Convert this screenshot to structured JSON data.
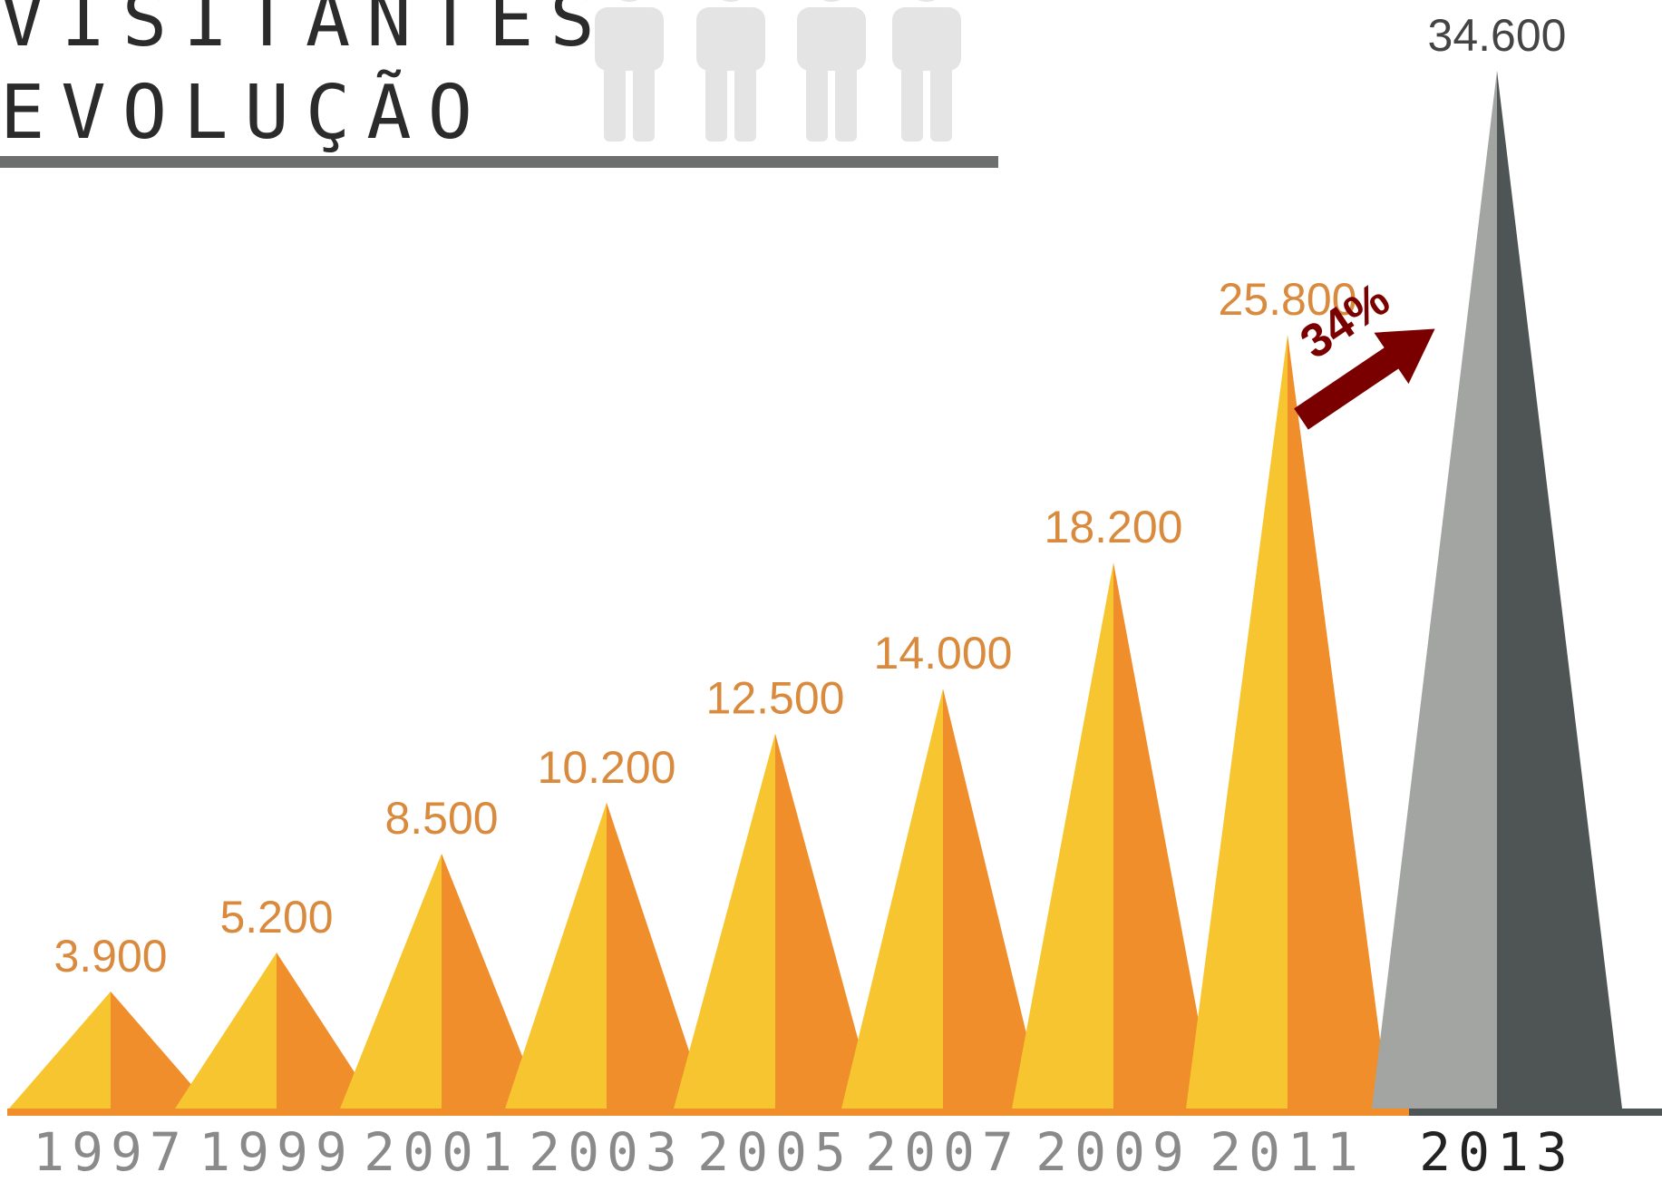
{
  "title": {
    "line1": "VISITANTES",
    "line2": "EVOLUÇÃO"
  },
  "icons": [
    "person-icon",
    "person-icon",
    "person-icon",
    "person-icon"
  ],
  "annotation": {
    "label": "34%",
    "color": "#7a0000"
  },
  "colors": {
    "orange_light": "#f7c530",
    "orange_dark": "#ef8e2a",
    "gray_light": "#a3a5a3",
    "gray_dark": "#4e5554",
    "value_label": "#d98a3c",
    "highlight_value": "#444444",
    "year_label": "#8a8a8a",
    "highlight_year": "#222222",
    "person_icon": "#e4e4e4"
  },
  "chart_data": {
    "type": "bar",
    "categories": [
      "1997",
      "1999",
      "2001",
      "2003",
      "2005",
      "2007",
      "2009",
      "2011",
      "2013"
    ],
    "values": [
      3900,
      5200,
      8500,
      10200,
      12500,
      14000,
      18200,
      25800,
      34600
    ],
    "value_labels": [
      "3.900",
      "5.200",
      "8.500",
      "10.200",
      "12.500",
      "14.000",
      "18.200",
      "25.800",
      "34.600"
    ],
    "highlight_index": 8,
    "title": "VISITANTES EVOLUÇÃO",
    "xlabel": "",
    "ylabel": "",
    "ylim": [
      0,
      34600
    ],
    "grid": false,
    "legend": "none"
  }
}
